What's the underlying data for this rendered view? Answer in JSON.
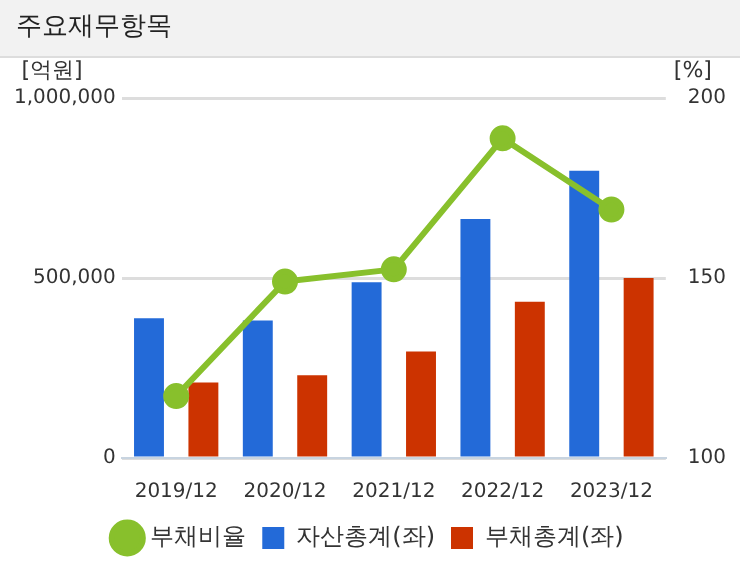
{
  "chart_data": {
    "type": "bar",
    "title": "주요재무항목",
    "ylabel": "[억원]",
    "y2label": "[%]",
    "categories": [
      "2019/12",
      "2020/12",
      "2021/12",
      "2022/12",
      "2023/12"
    ],
    "series": [
      {
        "name": "자산총계(좌)",
        "color": "#236ad8",
        "values": [
          388000,
          382000,
          488000,
          664000,
          798000
        ]
      },
      {
        "name": "부채총계(좌)",
        "color": "#cc3300",
        "values": [
          210000,
          230000,
          296000,
          434000,
          500000
        ]
      },
      {
        "name": "부채비율",
        "type": "line",
        "axis": "y2",
        "color": "#88c02c",
        "marker": "circle",
        "values": [
          117.2,
          149,
          152.4,
          188.8,
          169
        ]
      }
    ],
    "ylim": [
      0,
      1000000
    ],
    "yticks": [
      {
        "value": 0,
        "label": "0"
      },
      {
        "value": 500000,
        "label": "500,000"
      },
      {
        "value": 1000000,
        "label": "1,000,000"
      }
    ],
    "y2lim": [
      100,
      200
    ],
    "y2ticks": [
      100,
      150,
      200
    ],
    "grid": "y",
    "legend": "bottom"
  }
}
